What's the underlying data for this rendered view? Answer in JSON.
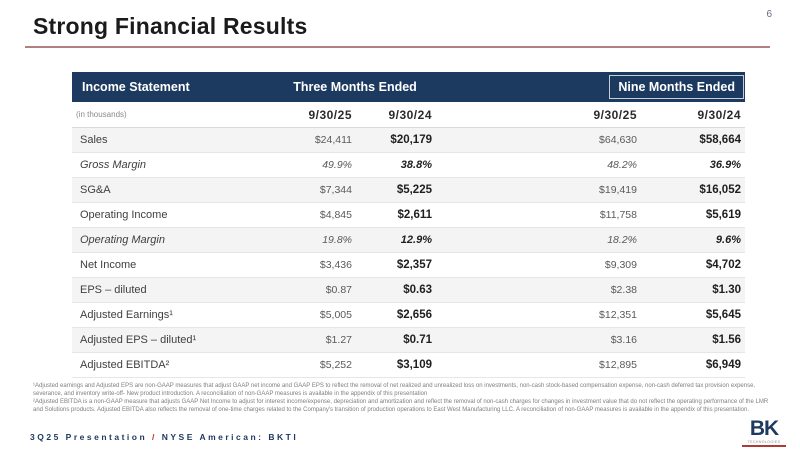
{
  "page_number": "6",
  "title": "Strong Financial Results",
  "table": {
    "header": {
      "col1": "Income Statement",
      "group1": "Three Months Ended",
      "group2": "Nine Months Ended"
    },
    "subheader": {
      "note": "(in thousands)",
      "dates": [
        "9/30/25",
        "9/30/24",
        "9/30/25",
        "9/30/24"
      ]
    },
    "rows": [
      {
        "label": "Sales",
        "italic": false,
        "values": [
          "$24,411",
          "$20,179",
          "$64,630",
          "$58,664"
        ]
      },
      {
        "label": "Gross Margin",
        "italic": true,
        "values": [
          "49.9%",
          "38.8%",
          "48.2%",
          "36.9%"
        ]
      },
      {
        "label": "SG&A",
        "italic": false,
        "values": [
          "$7,344",
          "$5,225",
          "$19,419",
          "$16,052"
        ]
      },
      {
        "label": "Operating Income",
        "italic": false,
        "values": [
          "$4,845",
          "$2,611",
          "$11,758",
          "$5,619"
        ]
      },
      {
        "label": "Operating Margin",
        "italic": true,
        "values": [
          "19.8%",
          "12.9%",
          "18.2%",
          "9.6%"
        ]
      },
      {
        "label": "Net Income",
        "italic": false,
        "values": [
          "$3,436",
          "$2,357",
          "$9,309",
          "$4,702"
        ]
      },
      {
        "label": "EPS – diluted",
        "italic": false,
        "values": [
          "$0.87",
          "$0.63",
          "$2.38",
          "$1.30"
        ]
      },
      {
        "label": "Adjusted Earnings¹",
        "italic": false,
        "values": [
          "$5,005",
          "$2,656",
          "$12,351",
          "$5,645"
        ]
      },
      {
        "label": "Adjusted EPS – diluted¹",
        "italic": false,
        "values": [
          "$1.27",
          "$0.71",
          "$3.16",
          "$1.56"
        ]
      },
      {
        "label": "Adjusted EBITDA²",
        "italic": false,
        "values": [
          "$5,252",
          "$3,109",
          "$12,895",
          "$6,949"
        ]
      }
    ]
  },
  "footnotes": [
    "¹Adjusted earnings and Adjusted EPS are non-GAAP measures that adjust GAAP net income and GAAP EPS to reflect the removal of net realized and unrealized loss on investments, non-cash stock-based compensation expense, non-cash deferred tax provision expense, severance, and inventory write-off- New product introduction.  A reconciliation of non-GAAP measures is available in the appendix of this presentation",
    "²Adjusted EBITDA is a non-GAAP measure that adjusts GAAP Net Income to adjust for interest income/expense, depreciation and amortization and reflect  the removal of non-cash charges for changes in investment value that do not reflect the operating performance of the LMR and Solutions products.  Adjusted EBITDA also reflects the removal of one-time charges related to the Company's transition of production operations to East West Manufacturing LLC.  A reconciliation of non-GAAP measures is available in the appendix of this presentation."
  ],
  "footer": {
    "left": "3Q25 Presentation ",
    "separator": "/",
    "right": " NYSE American: BKTI",
    "logo_text": "BK",
    "logo_subtext": "TECHNOLOGIES"
  },
  "colors": {
    "navy": "#1c3a60",
    "stripe": "#f4f4f4",
    "accent_red": "#c02b2b",
    "title_underline": "#ad8181"
  }
}
